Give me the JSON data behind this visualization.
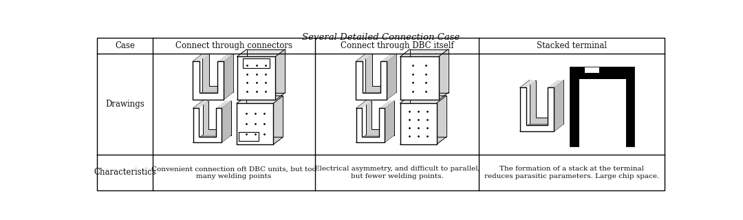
{
  "title": "Several Detailed Connection Case",
  "col_headers": [
    "Case",
    "Connect through connectors",
    "Connect through DBC itself",
    "Stacked terminal"
  ],
  "row1_label": "Drawings",
  "row2_label": "Characteristics",
  "char1": "Convenient connection oft DBC units, but too\nmany welding points",
  "char2": "Electrical asymmetry, and difficult to parallel,\nbut fewer welding points.",
  "char3": "The formation of a stack at the terminal\nreduces parasitic parameters. Large chip space.",
  "bg_color": "#ffffff",
  "line_color": "#000000"
}
